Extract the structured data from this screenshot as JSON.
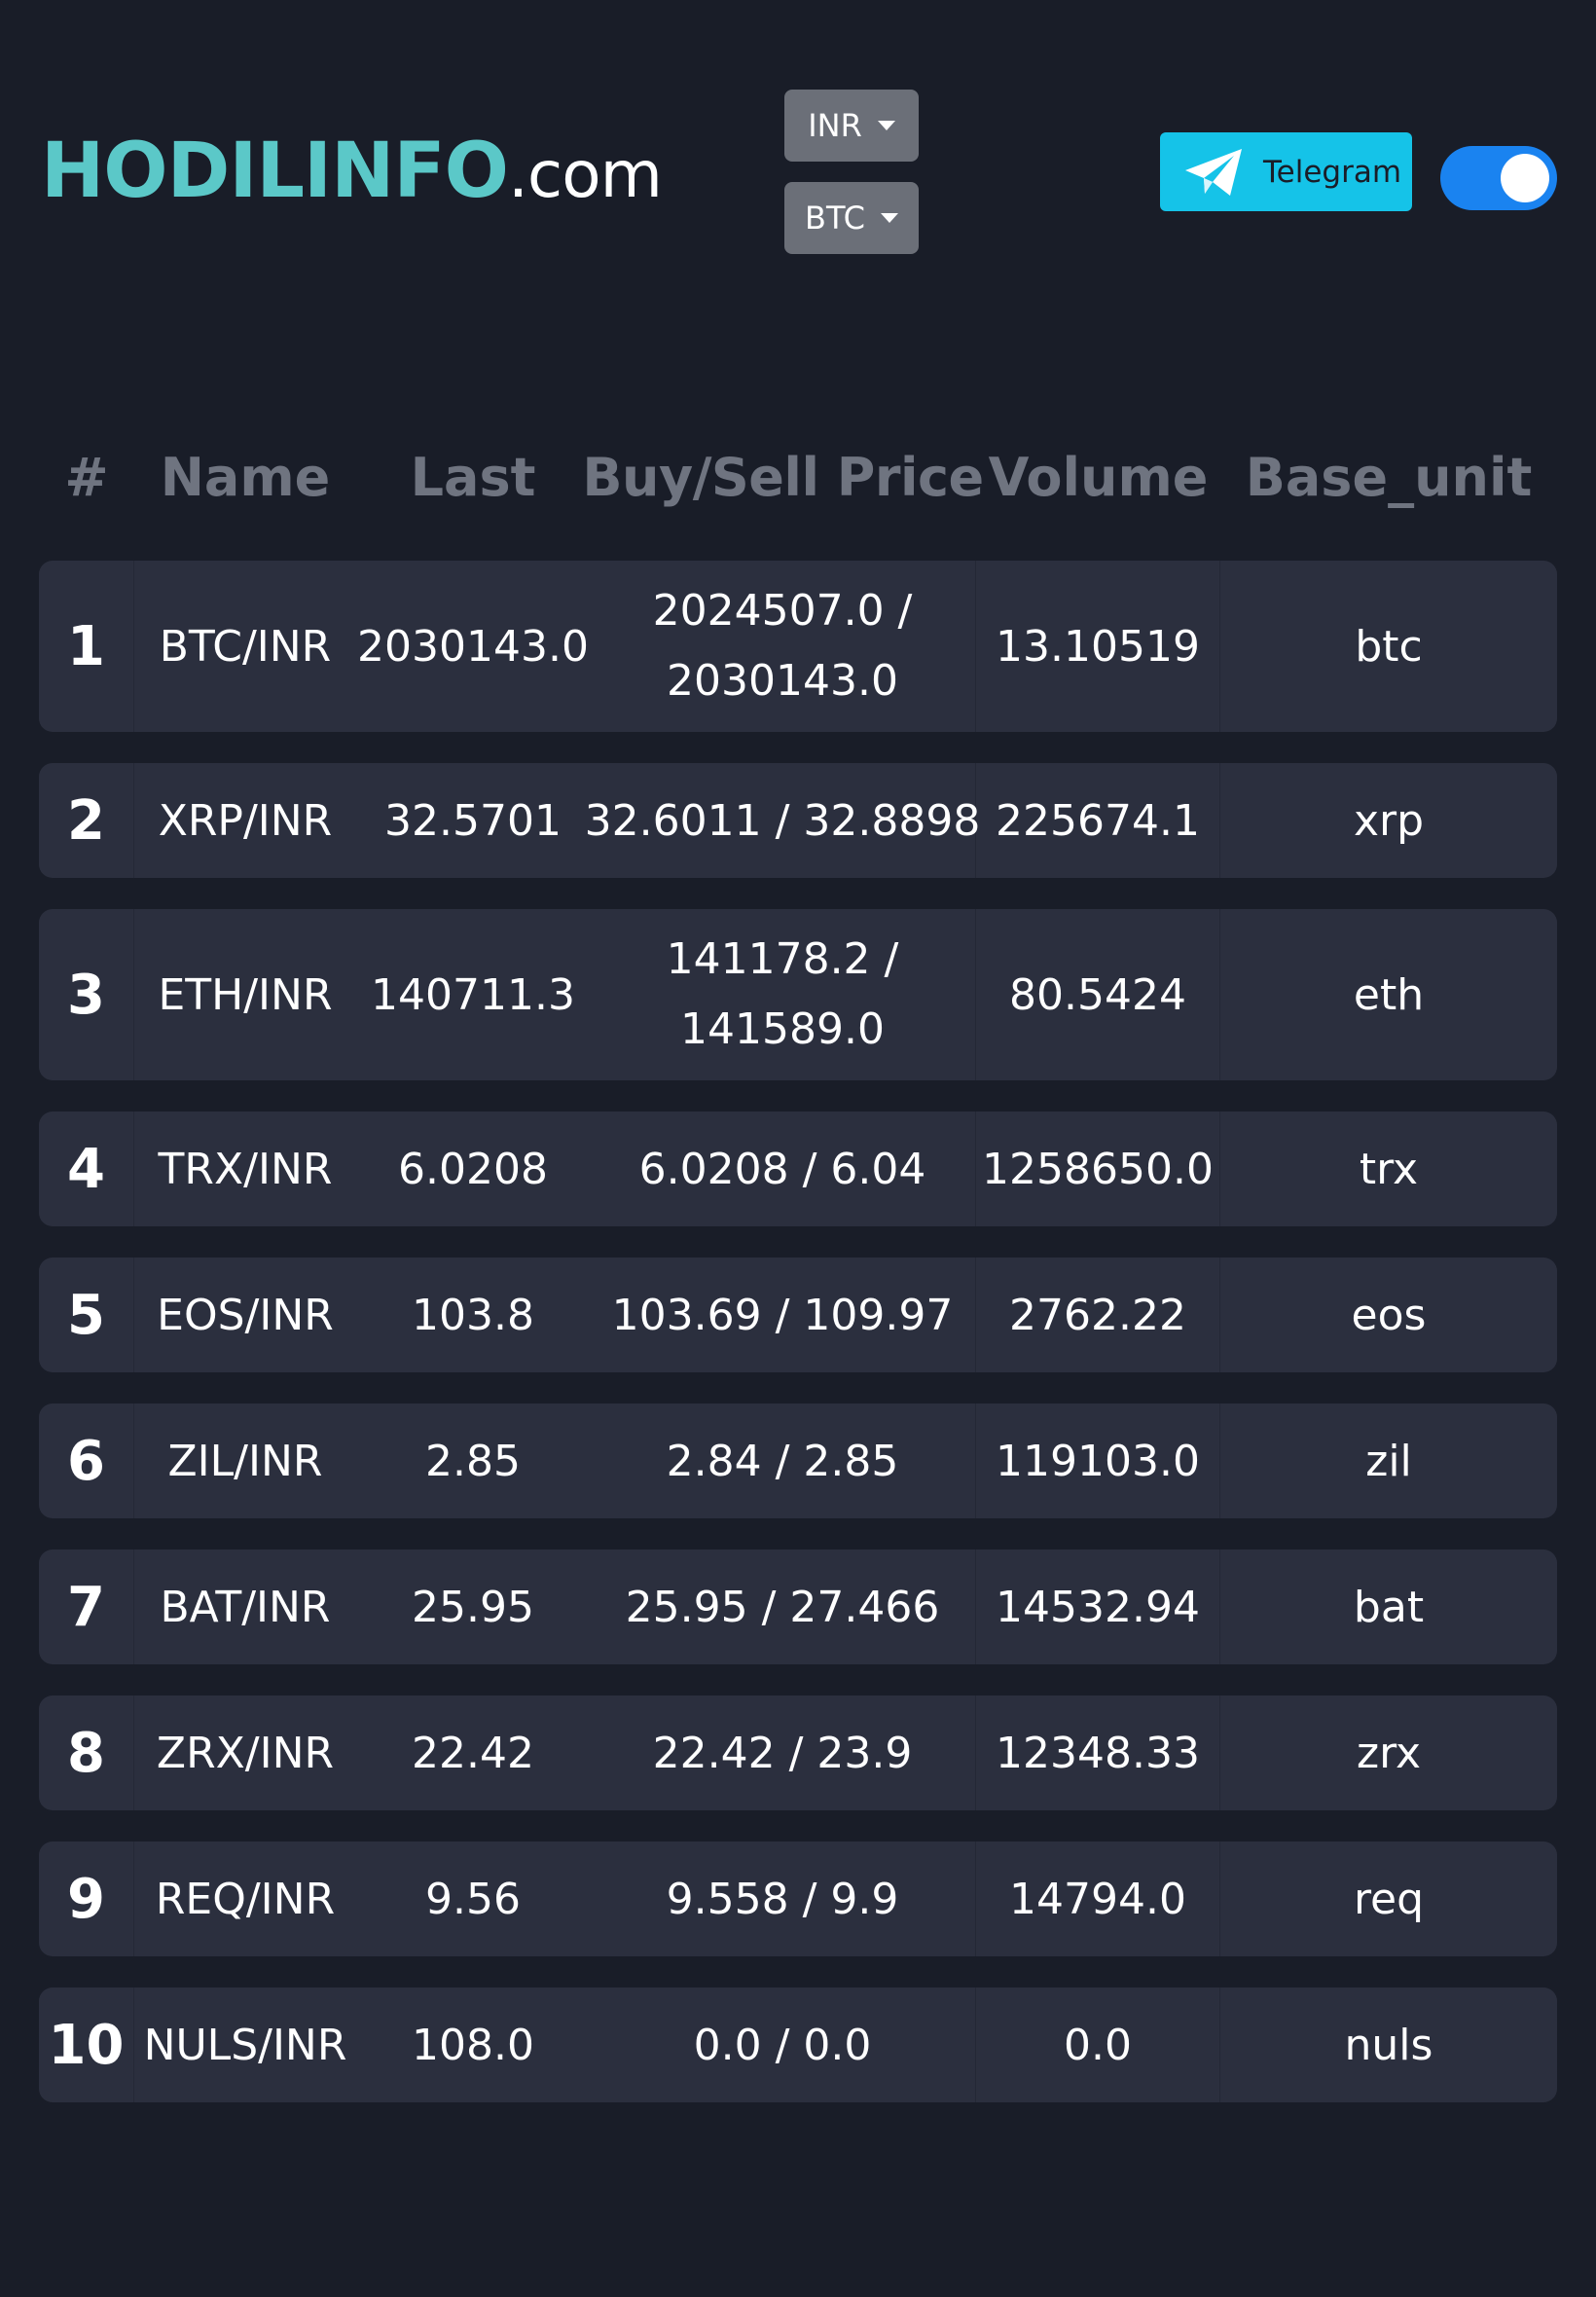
{
  "header": {
    "brand_main": "HODILINFO",
    "brand_domain": ".com",
    "currency_select": "INR",
    "crypto_select": "BTC",
    "telegram_label": "Telegram",
    "theme_toggle_state": "on"
  },
  "colors": {
    "background": "#191d28",
    "row_background": "#2b2f3e",
    "brand_accent": "#5bc8c8",
    "telegram_button": "#15c3e8",
    "toggle_on": "#1a83f0",
    "dropdown": "#6b6f78",
    "header_text": "#6f7480"
  },
  "icons": {
    "telegram": "paper-plane-icon",
    "dropdown": "caret-down-icon"
  },
  "table": {
    "columns": [
      "#",
      "Name",
      "Last",
      "Buy/Sell Price",
      "Volume",
      "Base_unit"
    ],
    "rows": [
      {
        "idx": "1",
        "name": "BTC/INR",
        "last": "2030143.0",
        "buy_sell": "2024507.0 / 2030143.0",
        "volume": "13.10519",
        "base": "btc"
      },
      {
        "idx": "2",
        "name": "XRP/INR",
        "last": "32.5701",
        "buy_sell": "32.6011 / 32.8898",
        "volume": "225674.1",
        "base": "xrp"
      },
      {
        "idx": "3",
        "name": "ETH/INR",
        "last": "140711.3",
        "buy_sell": "141178.2 / 141589.0",
        "volume": "80.5424",
        "base": "eth"
      },
      {
        "idx": "4",
        "name": "TRX/INR",
        "last": "6.0208",
        "buy_sell": "6.0208 / 6.04",
        "volume": "1258650.0",
        "base": "trx"
      },
      {
        "idx": "5",
        "name": "EOS/INR",
        "last": "103.8",
        "buy_sell": "103.69 / 109.97",
        "volume": "2762.22",
        "base": "eos"
      },
      {
        "idx": "6",
        "name": "ZIL/INR",
        "last": "2.85",
        "buy_sell": "2.84 / 2.85",
        "volume": "119103.0",
        "base": "zil"
      },
      {
        "idx": "7",
        "name": "BAT/INR",
        "last": "25.95",
        "buy_sell": "25.95 / 27.466",
        "volume": "14532.94",
        "base": "bat"
      },
      {
        "idx": "8",
        "name": "ZRX/INR",
        "last": "22.42",
        "buy_sell": "22.42 / 23.9",
        "volume": "12348.33",
        "base": "zrx"
      },
      {
        "idx": "9",
        "name": "REQ/INR",
        "last": "9.56",
        "buy_sell": "9.558 / 9.9",
        "volume": "14794.0",
        "base": "req"
      },
      {
        "idx": "10",
        "name": "NULS/INR",
        "last": "108.0",
        "buy_sell": "0.0 / 0.0",
        "volume": "0.0",
        "base": "nuls"
      }
    ]
  }
}
